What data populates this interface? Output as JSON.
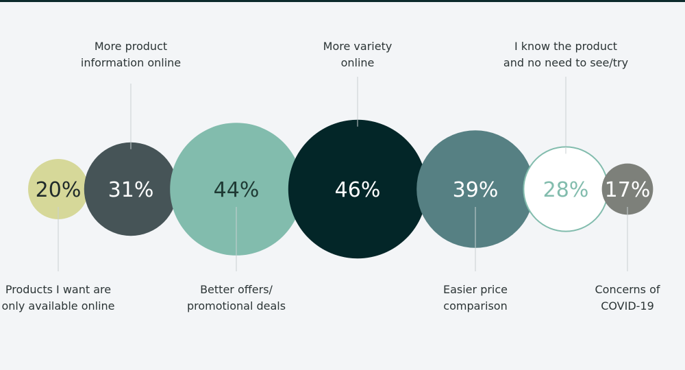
{
  "chart_data": {
    "type": "bubble",
    "title": "",
    "categories": [
      "Products I want are only available online",
      "More product information online",
      "Better offers/ promotional deals",
      "More variety online",
      "Easier price comparison",
      "I know the product and no need to see/try",
      "Concerns of COVID-19"
    ],
    "values": [
      20,
      31,
      44,
      46,
      39,
      28,
      17
    ],
    "value_labels": [
      "20%",
      "31%",
      "44%",
      "46%",
      "39%",
      "28%",
      "17%"
    ],
    "label_lines": [
      [
        "Products I want are",
        "only available online"
      ],
      [
        "More product",
        "information online"
      ],
      [
        "Better offers/",
        "promotional deals"
      ],
      [
        "More variety",
        "online"
      ],
      [
        "Easier price",
        "comparison"
      ],
      [
        "I know the product",
        "and no need to see/try"
      ],
      [
        "Concerns of",
        "COVID-19"
      ]
    ],
    "label_position": [
      "below",
      "above",
      "below",
      "above",
      "below",
      "above",
      "below"
    ],
    "colors": [
      "#d6d899",
      "#465457",
      "#82bcad",
      "#032628",
      "#568083",
      "#ffffff",
      "#7d807a"
    ],
    "text_colors": [
      "#1f2a2a",
      "#ffffff",
      "#1f3a34",
      "#ffffff",
      "#ffffff",
      "#82bcad",
      "#ffffff"
    ],
    "outline_colors": [
      "",
      "",
      "",
      "",
      "",
      "#82bcad",
      ""
    ],
    "leader_color": "#c8cfd1"
  }
}
